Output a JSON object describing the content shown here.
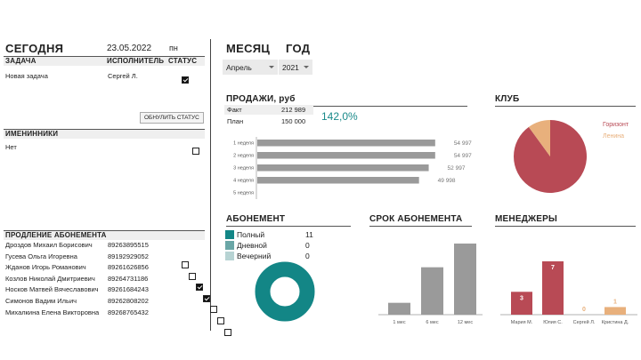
{
  "today": {
    "title": "СЕГОДНЯ",
    "date": "23.05.2022",
    "weekday": "пн"
  },
  "tasks": {
    "col_task": "ЗАДАЧА",
    "col_exec": "ИСПОЛНИТЕЛЬ",
    "col_status": "СТАТУС",
    "rows": [
      {
        "task": "Новая задача",
        "exec": "Сергей Л.",
        "done": true
      }
    ],
    "reset_button": "ОБНУЛИТЬ СТАТУС"
  },
  "birthdays": {
    "title": "ИМЕНИННИКИ",
    "rows": [
      {
        "name": "Нет",
        "done": false
      }
    ]
  },
  "renewal": {
    "title": "ПРОДЛЕНИЕ АБОНЕМЕНТА",
    "rows": [
      {
        "name": "Дроздов Михаил Борисович",
        "phone": "89263895515",
        "done": false
      },
      {
        "name": "Гусева Ольга Игоревна",
        "phone": "89192929052",
        "done": false
      },
      {
        "name": "Жданов Игорь Романович",
        "phone": "89261626856",
        "done": true
      },
      {
        "name": "Козлов Николай Дмитриевич",
        "phone": "89264731186",
        "done": true
      },
      {
        "name": "Носков Матвей Вячеславович",
        "phone": "89261684243",
        "done": false
      },
      {
        "name": "Симонов Вадим Ильич",
        "phone": "89262808202",
        "done": false
      },
      {
        "name": "Михалкина Елена Викторовна",
        "phone": "89268765432",
        "done": false
      }
    ]
  },
  "period": {
    "month_label": "МЕСЯЦ",
    "year_label": "ГОД",
    "month_value": "Апрель",
    "year_value": "2021"
  },
  "sales": {
    "title": "ПРОДАЖИ, руб",
    "fact_label": "Факт",
    "fact_value": "212 989",
    "plan_label": "План",
    "plan_value": "150 000",
    "percent": "142,0%"
  },
  "club": {
    "title": "КЛУБ"
  },
  "subscription": {
    "title": "АБОНЕМЕНТ",
    "items": [
      {
        "label": "Полный",
        "count": "11",
        "color": "#138686"
      },
      {
        "label": "Дневной",
        "count": "0",
        "color": "#6aa6a6"
      },
      {
        "label": "Вечерний",
        "count": "0",
        "color": "#b7d3d3"
      }
    ]
  },
  "term": {
    "title": "СРОК АБОНЕМЕНТА"
  },
  "managers": {
    "title": "МЕНЕДЖЕРЫ"
  },
  "chart_data": [
    {
      "type": "bar",
      "orientation": "horizontal",
      "categories": [
        "1 неделя",
        "2 неделя",
        "3 неделя",
        "4 неделя",
        "5 неделя"
      ],
      "values": [
        54997,
        54997,
        52997,
        49998,
        0
      ],
      "labels": [
        "54 997",
        "54 997",
        "52 997",
        "49 998",
        ""
      ],
      "color": "#9a9a9a",
      "xlim": [
        0,
        60000
      ]
    },
    {
      "type": "pie",
      "categories": [
        "Горизонт",
        "Ленина"
      ],
      "values": [
        90,
        10
      ],
      "colors": [
        "#b84a55",
        "#e8b07c"
      ],
      "legend": "right"
    },
    {
      "type": "pie",
      "donut": true,
      "categories": [
        "Полный",
        "Дневной",
        "Вечерний"
      ],
      "values": [
        11,
        0,
        0
      ],
      "colors": [
        "#138686",
        "#6aa6a6",
        "#b7d3d3"
      ]
    },
    {
      "type": "bar",
      "categories": [
        "1 мес",
        "6 мес",
        "12 мес"
      ],
      "values": [
        1,
        4,
        6
      ],
      "color": "#9a9a9a"
    },
    {
      "type": "bar",
      "categories": [
        "Мария М.",
        "Юлия С.",
        "Сергей Л.",
        "Кристина Д."
      ],
      "values": [
        3,
        7,
        0,
        1
      ],
      "labels": [
        "3",
        "7",
        "0",
        "1"
      ],
      "colors": [
        "#b84a55",
        "#b84a55",
        "#e8b07c",
        "#e8b07c"
      ]
    }
  ]
}
